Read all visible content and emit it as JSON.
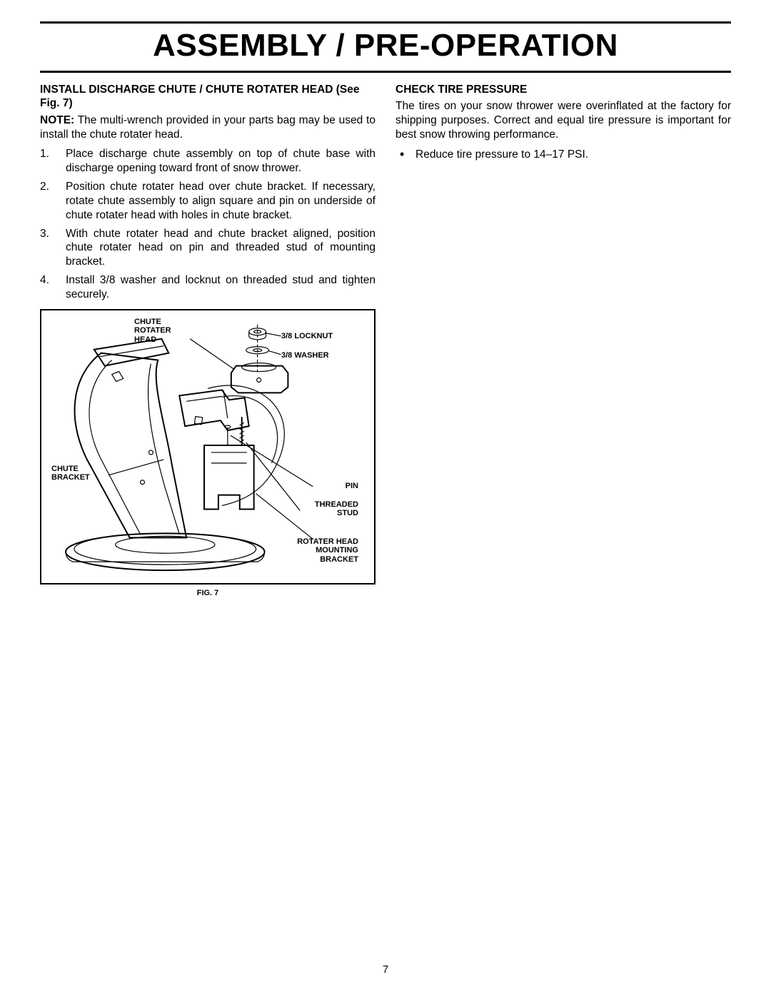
{
  "page": {
    "title": "ASSEMBLY / PRE-OPERATION",
    "page_number": "7"
  },
  "left": {
    "heading": "INSTALL DISCHARGE CHUTE / CHUTE ROTATER HEAD (See Fig. 7)",
    "note_label": "NOTE:",
    "note_text": " The multi-wrench provided in your parts bag may be used to install the chute rotater head.",
    "steps": [
      "Place discharge chute assembly on top of chute base with discharge opening toward front of snow thrower.",
      "Position chute rotater head over chute bracket. If necessary, rotate chute assembly to align square and pin on underside of chute rotater head with holes in chute bracket.",
      "With chute rotater head and chute bracket aligned, position chute rotater head on pin and threaded stud of mounting bracket.",
      "Install 3/8 washer and locknut on threaded stud and tighten securely."
    ],
    "figure": {
      "caption": "FIG. 7",
      "labels": {
        "chute_rotater_head": "CHUTE\nROTATER\nHEAD",
        "locknut": "3/8 LOCKNUT",
        "washer": "3/8 WASHER",
        "chute_bracket": "CHUTE\nBRACKET",
        "pin": "PIN",
        "threaded_stud": "THREADED\nSTUD",
        "mounting_bracket": "ROTATER HEAD\nMOUNTING\nBRACKET"
      }
    }
  },
  "right": {
    "heading": "CHECK TIRE PRESSURE",
    "body": "The tires on your snow thrower were overinflated at the factory for shipping purposes. Correct and equal tire pressure is important for best snow throwing performance.",
    "bullets": [
      "Reduce tire pressure to 14–17 PSI."
    ]
  }
}
